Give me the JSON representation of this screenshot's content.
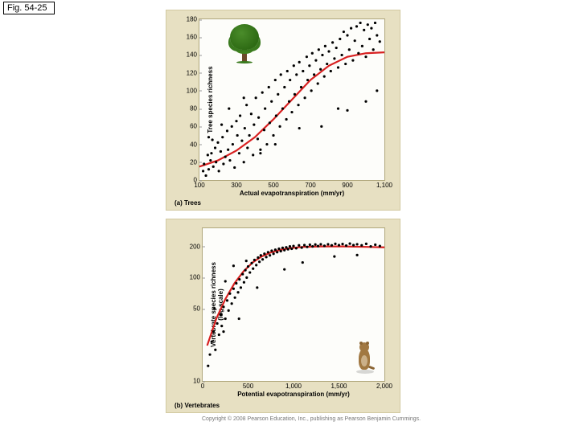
{
  "figure_label": "Fig. 54-25",
  "global": {
    "point_color": "#000000",
    "trend_color": "#d82020",
    "trend_width": 2.2,
    "chart_bg": "#e7e0c2",
    "plot_bg": "#fdfdfa",
    "font_family": "Arial",
    "axis_font_size_pt": 8,
    "label_font_size_pt": 8
  },
  "chart_a": {
    "type": "scatter",
    "sub_caption": "(a) Trees",
    "xlabel": "Actual evapotranspiration (mm/yr)",
    "ylabel": "Tree species richness",
    "xlim": [
      100,
      1100
    ],
    "ylim": [
      0,
      180
    ],
    "xticks": [
      100,
      300,
      500,
      700,
      900,
      1100
    ],
    "yticks": [
      0,
      20,
      40,
      60,
      80,
      100,
      120,
      140,
      160,
      180
    ],
    "trend": [
      [
        100,
        15
      ],
      [
        200,
        22
      ],
      [
        300,
        33
      ],
      [
        400,
        48
      ],
      [
        500,
        68
      ],
      [
        600,
        90
      ],
      [
        700,
        112
      ],
      [
        800,
        128
      ],
      [
        900,
        138
      ],
      [
        1000,
        142
      ],
      [
        1100,
        143
      ]
    ],
    "points": [
      [
        120,
        10
      ],
      [
        125,
        18
      ],
      [
        135,
        5
      ],
      [
        145,
        28
      ],
      [
        150,
        12
      ],
      [
        160,
        22
      ],
      [
        165,
        30
      ],
      [
        175,
        15
      ],
      [
        185,
        36
      ],
      [
        190,
        20
      ],
      [
        200,
        42
      ],
      [
        205,
        10
      ],
      [
        215,
        32
      ],
      [
        225,
        48
      ],
      [
        230,
        18
      ],
      [
        240,
        26
      ],
      [
        250,
        55
      ],
      [
        255,
        34
      ],
      [
        265,
        22
      ],
      [
        275,
        60
      ],
      [
        280,
        40
      ],
      [
        290,
        14
      ],
      [
        300,
        66
      ],
      [
        305,
        50
      ],
      [
        315,
        30
      ],
      [
        320,
        72
      ],
      [
        330,
        44
      ],
      [
        340,
        20
      ],
      [
        345,
        58
      ],
      [
        355,
        84
      ],
      [
        360,
        36
      ],
      [
        370,
        50
      ],
      [
        380,
        74
      ],
      [
        390,
        28
      ],
      [
        395,
        62
      ],
      [
        405,
        92
      ],
      [
        415,
        46
      ],
      [
        420,
        70
      ],
      [
        430,
        34
      ],
      [
        440,
        98
      ],
      [
        450,
        56
      ],
      [
        455,
        80
      ],
      [
        465,
        40
      ],
      [
        475,
        104
      ],
      [
        480,
        64
      ],
      [
        490,
        88
      ],
      [
        500,
        50
      ],
      [
        510,
        112
      ],
      [
        515,
        72
      ],
      [
        525,
        96
      ],
      [
        535,
        60
      ],
      [
        540,
        118
      ],
      [
        550,
        80
      ],
      [
        560,
        104
      ],
      [
        570,
        68
      ],
      [
        575,
        122
      ],
      [
        585,
        88
      ],
      [
        590,
        112
      ],
      [
        600,
        76
      ],
      [
        610,
        128
      ],
      [
        615,
        96
      ],
      [
        625,
        118
      ],
      [
        635,
        84
      ],
      [
        640,
        132
      ],
      [
        650,
        104
      ],
      [
        660,
        122
      ],
      [
        670,
        92
      ],
      [
        680,
        138
      ],
      [
        685,
        112
      ],
      [
        695,
        128
      ],
      [
        705,
        100
      ],
      [
        710,
        142
      ],
      [
        720,
        118
      ],
      [
        730,
        134
      ],
      [
        740,
        108
      ],
      [
        745,
        146
      ],
      [
        755,
        124
      ],
      [
        765,
        140
      ],
      [
        775,
        116
      ],
      [
        780,
        150
      ],
      [
        790,
        130
      ],
      [
        800,
        144
      ],
      [
        810,
        122
      ],
      [
        820,
        154
      ],
      [
        830,
        136
      ],
      [
        840,
        148
      ],
      [
        850,
        126
      ],
      [
        860,
        158
      ],
      [
        870,
        140
      ],
      [
        880,
        166
      ],
      [
        890,
        130
      ],
      [
        900,
        162
      ],
      [
        910,
        146
      ],
      [
        920,
        170
      ],
      [
        930,
        134
      ],
      [
        940,
        156
      ],
      [
        950,
        172
      ],
      [
        960,
        142
      ],
      [
        970,
        176
      ],
      [
        980,
        150
      ],
      [
        990,
        168
      ],
      [
        1000,
        138
      ],
      [
        1010,
        174
      ],
      [
        1020,
        158
      ],
      [
        1030,
        170
      ],
      [
        1040,
        146
      ],
      [
        1050,
        176
      ],
      [
        1060,
        162
      ],
      [
        1075,
        155
      ],
      [
        170,
        45
      ],
      [
        220,
        62
      ],
      [
        340,
        92
      ],
      [
        430,
        30
      ],
      [
        760,
        60
      ],
      [
        900,
        78
      ],
      [
        1060,
        100
      ],
      [
        150,
        48
      ],
      [
        260,
        80
      ],
      [
        510,
        40
      ],
      [
        640,
        58
      ],
      [
        850,
        80
      ],
      [
        1000,
        88
      ]
    ]
  },
  "chart_b": {
    "type": "scatter-log",
    "sub_caption": "(b) Vertebrates",
    "xlabel": "Potential evapotranspiration (mm/yr)",
    "ylabel": "Vertebrate species richness\n(log scale)",
    "xlim": [
      0,
      2000
    ],
    "ylim_log": [
      10,
      300
    ],
    "xticks": [
      0,
      500,
      1000,
      1500,
      2000
    ],
    "yticks_log": [
      10,
      50,
      100,
      200
    ],
    "trend": [
      [
        50,
        22
      ],
      [
        150,
        40
      ],
      [
        250,
        62
      ],
      [
        350,
        88
      ],
      [
        450,
        115
      ],
      [
        550,
        140
      ],
      [
        650,
        160
      ],
      [
        750,
        175
      ],
      [
        850,
        185
      ],
      [
        950,
        192
      ],
      [
        1100,
        198
      ],
      [
        1300,
        200
      ],
      [
        1550,
        200
      ],
      [
        1800,
        198
      ],
      [
        2000,
        196
      ]
    ],
    "points": [
      [
        60,
        14
      ],
      [
        80,
        18
      ],
      [
        100,
        24
      ],
      [
        120,
        30
      ],
      [
        140,
        20
      ],
      [
        160,
        36
      ],
      [
        180,
        28
      ],
      [
        200,
        44
      ],
      [
        210,
        34
      ],
      [
        230,
        52
      ],
      [
        250,
        40
      ],
      [
        270,
        60
      ],
      [
        285,
        48
      ],
      [
        300,
        70
      ],
      [
        320,
        56
      ],
      [
        340,
        78
      ],
      [
        355,
        64
      ],
      [
        370,
        88
      ],
      [
        390,
        72
      ],
      [
        405,
        96
      ],
      [
        420,
        80
      ],
      [
        440,
        108
      ],
      [
        455,
        90
      ],
      [
        470,
        118
      ],
      [
        485,
        100
      ],
      [
        500,
        128
      ],
      [
        520,
        112
      ],
      [
        540,
        138
      ],
      [
        555,
        122
      ],
      [
        570,
        148
      ],
      [
        590,
        132
      ],
      [
        610,
        156
      ],
      [
        625,
        142
      ],
      [
        640,
        164
      ],
      [
        660,
        150
      ],
      [
        680,
        170
      ],
      [
        700,
        158
      ],
      [
        720,
        176
      ],
      [
        740,
        164
      ],
      [
        760,
        182
      ],
      [
        780,
        170
      ],
      [
        800,
        186
      ],
      [
        820,
        176
      ],
      [
        840,
        190
      ],
      [
        860,
        180
      ],
      [
        880,
        194
      ],
      [
        900,
        184
      ],
      [
        920,
        196
      ],
      [
        940,
        188
      ],
      [
        960,
        200
      ],
      [
        980,
        190
      ],
      [
        1000,
        202
      ],
      [
        1030,
        192
      ],
      [
        1060,
        205
      ],
      [
        1090,
        195
      ],
      [
        1120,
        206
      ],
      [
        1150,
        198
      ],
      [
        1180,
        208
      ],
      [
        1210,
        200
      ],
      [
        1240,
        209
      ],
      [
        1270,
        202
      ],
      [
        1300,
        210
      ],
      [
        1340,
        203
      ],
      [
        1380,
        210
      ],
      [
        1420,
        205
      ],
      [
        1460,
        212
      ],
      [
        1500,
        206
      ],
      [
        1540,
        211
      ],
      [
        1580,
        204
      ],
      [
        1620,
        213
      ],
      [
        1660,
        206
      ],
      [
        1700,
        210
      ],
      [
        1750,
        205
      ],
      [
        1800,
        212
      ],
      [
        1850,
        200
      ],
      [
        1900,
        208
      ],
      [
        1950,
        202
      ],
      [
        130,
        50
      ],
      [
        250,
        92
      ],
      [
        400,
        40
      ],
      [
        600,
        80
      ],
      [
        900,
        120
      ],
      [
        1100,
        140
      ],
      [
        1450,
        160
      ],
      [
        1700,
        165
      ],
      [
        340,
        130
      ],
      [
        230,
        30
      ],
      [
        480,
        145
      ]
    ]
  },
  "copyright": "Copyright © 2008 Pearson Education, Inc., publishing as Pearson Benjamin Cummings."
}
